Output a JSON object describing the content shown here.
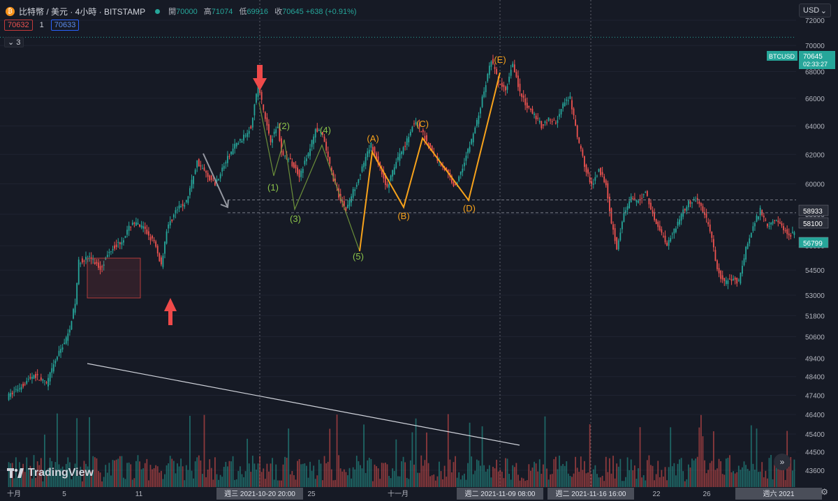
{
  "header": {
    "symbol": "比特幣 / 美元 · 4小時 · BITSTAMP",
    "ohlc": [
      {
        "k": "開",
        "v": "70000"
      },
      {
        "k": "高",
        "v": "71074"
      },
      {
        "k": "低",
        "v": "69916"
      },
      {
        "k": "收",
        "v": "70645 +638 (+0.91%)"
      }
    ],
    "bid": "70632",
    "spread": "1",
    "ask": "70633",
    "indicators_count": "3",
    "currency": "USD"
  },
  "branding": "TradingView",
  "colors": {
    "bg": "#161a25",
    "up": "#26a69a",
    "down": "#ef5350",
    "wave_green": "#8bc34a",
    "wave_orange": "#f7a21b",
    "arrow_red": "#ef4a4a"
  },
  "chart_data": {
    "type": "candlestick",
    "y_axis": {
      "ticks": [
        "72000",
        "70000",
        "68000",
        "66000",
        "64000",
        "62000",
        "60000",
        "58000",
        "56000",
        "54500",
        "53000",
        "51800",
        "50600",
        "49400",
        "48400",
        "47400",
        "46400",
        "45400",
        "44500",
        "43600"
      ],
      "scale": "log"
    },
    "x_axis": {
      "ticks": [
        "十月",
        "5",
        "11",
        "週三 2021-10-20  20:00",
        "25",
        "十一月",
        "週二 2021-11-09  08:00",
        "週二 2021-11-16  16:00",
        "22",
        "26",
        "週六 2021"
      ]
    },
    "price_labels": [
      {
        "text": "BTCUSD",
        "value": "70645",
        "sub": "02:33:27"
      },
      {
        "text": "58933"
      },
      {
        "text": "58100"
      },
      {
        "text": "56799"
      }
    ],
    "price_path": [
      [
        0,
        47300
      ],
      [
        8,
        47900
      ],
      [
        15,
        48500
      ],
      [
        22,
        48000
      ],
      [
        28,
        49500
      ],
      [
        34,
        50700
      ],
      [
        38,
        52500
      ],
      [
        40,
        55000
      ],
      [
        46,
        55300
      ],
      [
        52,
        54600
      ],
      [
        58,
        55800
      ],
      [
        64,
        56300
      ],
      [
        70,
        57500
      ],
      [
        76,
        57100
      ],
      [
        82,
        56200
      ],
      [
        86,
        54800
      ],
      [
        89,
        57000
      ],
      [
        94,
        58200
      ],
      [
        100,
        58800
      ],
      [
        106,
        61500
      ],
      [
        112,
        60500
      ],
      [
        116,
        60000
      ],
      [
        122,
        61500
      ],
      [
        127,
        62600
      ],
      [
        132,
        63200
      ],
      [
        136,
        64000
      ],
      [
        140,
        67000
      ],
      [
        144,
        64500
      ],
      [
        147,
        63000
      ],
      [
        151,
        64000
      ],
      [
        153,
        62100
      ],
      [
        158,
        61500
      ],
      [
        163,
        60600
      ],
      [
        168,
        62000
      ],
      [
        172,
        63800
      ],
      [
        176,
        63300
      ],
      [
        181,
        60700
      ],
      [
        185,
        59200
      ],
      [
        189,
        58300
      ],
      [
        193,
        59500
      ],
      [
        197,
        60700
      ],
      [
        203,
        62700
      ],
      [
        208,
        61100
      ],
      [
        212,
        59700
      ],
      [
        217,
        61500
      ],
      [
        222,
        62700
      ],
      [
        227,
        64300
      ],
      [
        232,
        63400
      ],
      [
        238,
        62000
      ],
      [
        244,
        61000
      ],
      [
        250,
        59800
      ],
      [
        254,
        61200
      ],
      [
        258,
        62600
      ],
      [
        262,
        64300
      ],
      [
        266,
        66500
      ],
      [
        270,
        68900
      ],
      [
        274,
        67200
      ],
      [
        278,
        66500
      ],
      [
        282,
        68700
      ],
      [
        286,
        66400
      ],
      [
        290,
        65300
      ],
      [
        294,
        64800
      ],
      [
        298,
        64000
      ],
      [
        302,
        64500
      ],
      [
        306,
        64200
      ],
      [
        310,
        65500
      ],
      [
        314,
        66000
      ],
      [
        318,
        63200
      ],
      [
        322,
        61300
      ],
      [
        326,
        59800
      ],
      [
        330,
        61000
      ],
      [
        334,
        60000
      ],
      [
        337,
        57500
      ],
      [
        340,
        55900
      ],
      [
        344,
        58000
      ],
      [
        348,
        59000
      ],
      [
        352,
        58800
      ],
      [
        356,
        59500
      ],
      [
        360,
        58000
      ],
      [
        364,
        57000
      ],
      [
        368,
        56100
      ],
      [
        372,
        57000
      ],
      [
        376,
        58000
      ],
      [
        380,
        58700
      ],
      [
        384,
        59000
      ],
      [
        388,
        58300
      ],
      [
        392,
        57000
      ],
      [
        396,
        54500
      ],
      [
        400,
        53700
      ],
      [
        404,
        54000
      ],
      [
        408,
        53800
      ],
      [
        412,
        55800
      ],
      [
        416,
        57200
      ],
      [
        420,
        58300
      ],
      [
        424,
        57300
      ],
      [
        428,
        57700
      ],
      [
        432,
        57200
      ],
      [
        436,
        56700
      ],
      [
        439,
        56800
      ]
    ],
    "annotations": {
      "wave_labels_green": [
        "(1)",
        "(2)",
        "(3)",
        "(4)",
        "(5)"
      ],
      "wave_labels_orange": [
        "(A)",
        "(B)",
        "(C)",
        "(D)",
        "(E)"
      ],
      "horizontal_levels": [
        58933,
        58100
      ]
    }
  }
}
